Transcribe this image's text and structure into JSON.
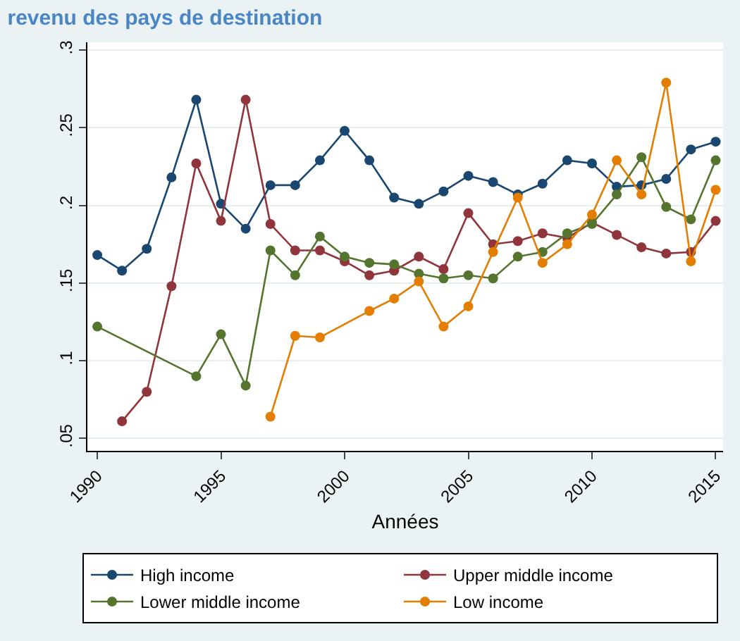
{
  "chart_data": {
    "type": "line",
    "title": "revenu des pays de destination",
    "xlabel": "Années",
    "x": [
      1990,
      1991,
      1992,
      1993,
      1994,
      1995,
      1996,
      1997,
      1998,
      1999,
      2000,
      2001,
      2002,
      2003,
      2004,
      2005,
      2006,
      2007,
      2008,
      2009,
      2010,
      2011,
      2012,
      2013,
      2014,
      2015
    ],
    "series": [
      {
        "name": "High income",
        "color": "#1a476f",
        "values": [
          0.168,
          0.158,
          0.172,
          0.218,
          0.268,
          0.201,
          0.185,
          0.213,
          0.213,
          0.229,
          0.248,
          0.229,
          0.205,
          0.201,
          0.209,
          0.219,
          0.215,
          0.207,
          0.214,
          0.229,
          0.227,
          0.212,
          0.213,
          0.217,
          0.236,
          0.241
        ]
      },
      {
        "name": "Upper middle income",
        "color": "#90353b",
        "values": [
          null,
          0.061,
          0.08,
          0.148,
          0.227,
          0.19,
          0.268,
          0.188,
          0.171,
          0.171,
          0.164,
          0.155,
          0.158,
          0.167,
          0.159,
          0.195,
          0.175,
          0.177,
          0.182,
          0.179,
          0.189,
          0.181,
          0.173,
          0.169,
          0.17,
          0.19
        ]
      },
      {
        "name": "Lower middle income",
        "color": "#55752f",
        "values": [
          0.122,
          null,
          null,
          null,
          0.09,
          0.117,
          0.084,
          0.171,
          0.155,
          0.18,
          0.167,
          0.163,
          0.162,
          0.156,
          0.153,
          0.155,
          0.153,
          0.167,
          0.17,
          0.182,
          0.188,
          0.207,
          0.231,
          0.199,
          0.191,
          0.229
        ]
      },
      {
        "name": "Low income",
        "color": "#e37e00",
        "values": [
          null,
          null,
          null,
          null,
          null,
          null,
          null,
          0.064,
          0.116,
          0.115,
          null,
          0.132,
          0.14,
          0.151,
          0.122,
          0.135,
          0.17,
          0.205,
          0.163,
          0.175,
          0.194,
          0.229,
          0.207,
          0.279,
          0.164,
          0.21
        ]
      }
    ],
    "xlim": [
      1989.6,
      2015.3
    ],
    "xticks": [
      1990,
      1995,
      2000,
      2005,
      2010,
      2015
    ],
    "ylim": [
      0.042,
      0.305
    ],
    "yticks": [
      {
        "value": 0.05,
        "label": ".05"
      },
      {
        "value": 0.1,
        "label": ".1"
      },
      {
        "value": 0.15,
        "label": ".15"
      },
      {
        "value": 0.2,
        "label": ".2"
      },
      {
        "value": 0.25,
        "label": ".25"
      },
      {
        "value": 0.3,
        "label": ".3"
      }
    ],
    "grid": "y",
    "legend": "bottom",
    "marker": "circle",
    "line_style": "solid"
  }
}
